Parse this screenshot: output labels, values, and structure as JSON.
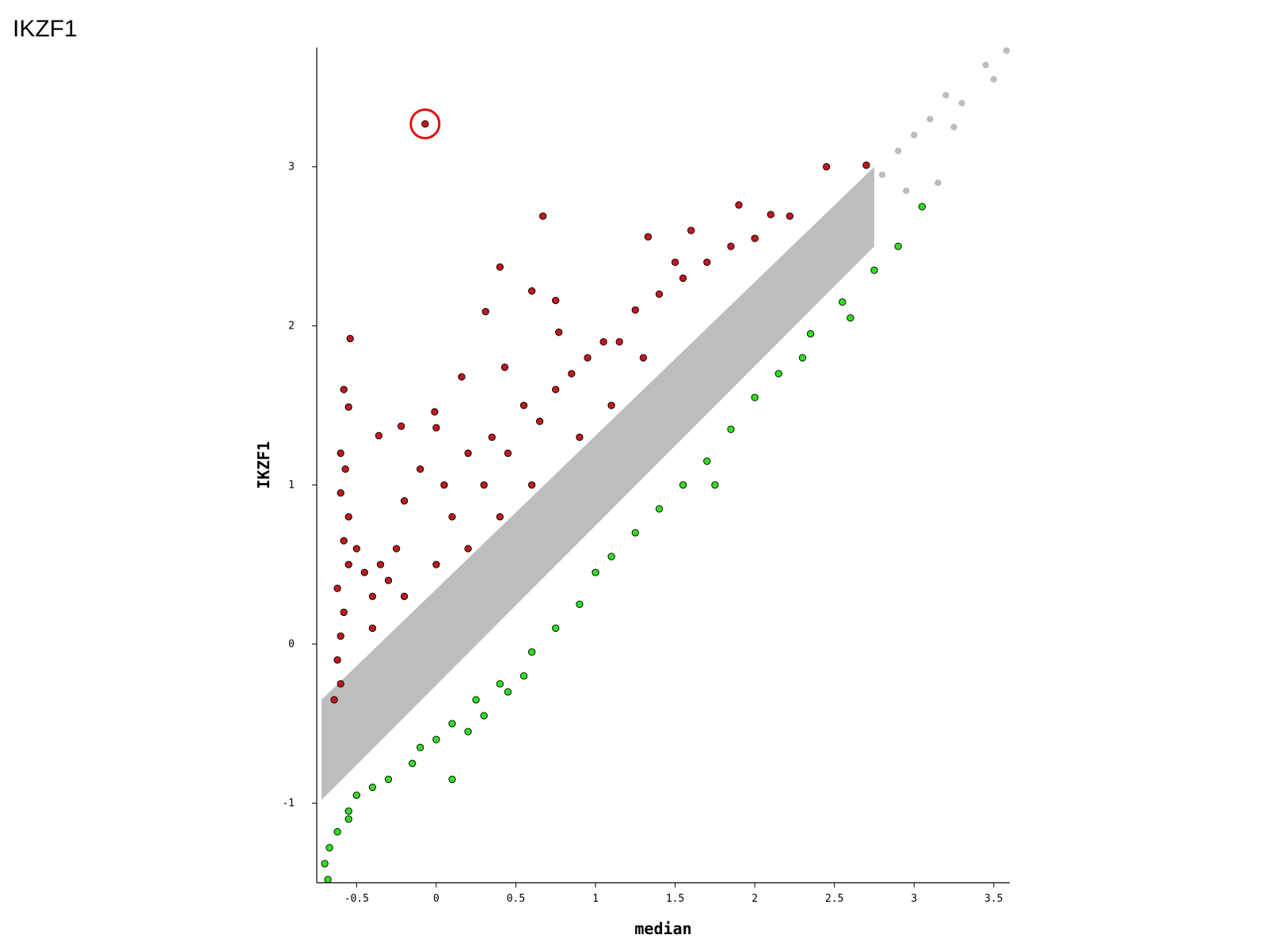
{
  "page_title": "IKZF1",
  "colors": {
    "up": "#c0181e",
    "down": "#33dd22",
    "neutral": "#bdbdbd",
    "highlight": "#e01010",
    "outline": "#000000"
  },
  "chart_data": {
    "type": "scatter",
    "title": "",
    "xlabel": "median",
    "ylabel": "IKZF1",
    "xlim": [
      -0.75,
      3.6
    ],
    "ylim": [
      -1.5,
      3.75
    ],
    "xticks": [
      "-0.5",
      "0",
      "0.5",
      "1",
      "1.5",
      "2",
      "2.5",
      "3",
      "3.5"
    ],
    "yticks": [
      "-1",
      "0",
      "1",
      "2",
      "3"
    ],
    "grid": false,
    "legend": "none",
    "groups": [
      {
        "name": "up",
        "color": "#c0181e",
        "note_values": "representative sample of up-regulated points (above band)",
        "points": [
          [
            -0.07,
            3.27
          ],
          [
            0.67,
            2.69
          ],
          [
            0.4,
            2.37
          ],
          [
            0.6,
            2.22
          ],
          [
            0.75,
            2.16
          ],
          [
            0.31,
            2.09
          ],
          [
            -0.54,
            1.92
          ],
          [
            0.77,
            1.96
          ],
          [
            -0.58,
            1.6
          ],
          [
            -0.55,
            1.49
          ],
          [
            -0.22,
            1.37
          ],
          [
            -0.36,
            1.31
          ],
          [
            0.16,
            1.68
          ],
          [
            0.43,
            1.74
          ],
          [
            -0.01,
            1.46
          ],
          [
            0.0,
            1.36
          ],
          [
            1.33,
            2.56
          ],
          [
            1.9,
            2.76
          ],
          [
            2.45,
            3.0
          ],
          [
            2.7,
            3.01
          ],
          [
            2.22,
            2.69
          ],
          [
            2.1,
            2.7
          ],
          [
            1.6,
            2.6
          ],
          [
            1.5,
            2.4
          ],
          [
            -0.6,
            1.2
          ],
          [
            -0.57,
            1.1
          ],
          [
            -0.6,
            0.95
          ],
          [
            -0.55,
            0.8
          ],
          [
            -0.58,
            0.65
          ],
          [
            -0.55,
            0.5
          ],
          [
            -0.62,
            0.35
          ],
          [
            -0.58,
            0.2
          ],
          [
            -0.6,
            0.05
          ],
          [
            -0.62,
            -0.1
          ],
          [
            -0.6,
            -0.25
          ],
          [
            -0.64,
            -0.35
          ],
          [
            -0.5,
            0.6
          ],
          [
            -0.45,
            0.45
          ],
          [
            -0.4,
            0.3
          ],
          [
            -0.35,
            0.5
          ],
          [
            -0.3,
            0.4
          ],
          [
            -0.25,
            0.6
          ],
          [
            -0.2,
            0.9
          ],
          [
            -0.1,
            1.1
          ],
          [
            0.05,
            1.0
          ],
          [
            0.1,
            0.8
          ],
          [
            0.2,
            1.2
          ],
          [
            0.3,
            1.0
          ],
          [
            0.35,
            1.3
          ],
          [
            0.45,
            1.2
          ],
          [
            0.55,
            1.5
          ],
          [
            0.65,
            1.4
          ],
          [
            0.75,
            1.6
          ],
          [
            0.85,
            1.7
          ],
          [
            0.95,
            1.8
          ],
          [
            1.05,
            1.9
          ],
          [
            1.15,
            1.9
          ],
          [
            1.25,
            2.1
          ],
          [
            1.4,
            2.2
          ],
          [
            1.55,
            2.3
          ],
          [
            1.7,
            2.4
          ],
          [
            1.85,
            2.5
          ],
          [
            2.0,
            2.55
          ],
          [
            0.9,
            1.3
          ],
          [
            1.1,
            1.5
          ],
          [
            1.3,
            1.8
          ],
          [
            0.6,
            1.0
          ],
          [
            0.4,
            0.8
          ],
          [
            0.2,
            0.6
          ],
          [
            0.0,
            0.5
          ],
          [
            -0.2,
            0.3
          ],
          [
            -0.4,
            0.1
          ]
        ]
      },
      {
        "name": "down",
        "color": "#33dd22",
        "note_values": "representative sample of down-regulated points (below band)",
        "points": [
          [
            -0.68,
            -1.48
          ],
          [
            -0.7,
            -1.38
          ],
          [
            -0.67,
            -1.28
          ],
          [
            -0.62,
            -1.18
          ],
          [
            -0.55,
            -1.1
          ],
          [
            -0.5,
            -0.95
          ],
          [
            -0.4,
            -0.9
          ],
          [
            -0.3,
            -0.85
          ],
          [
            -0.15,
            -0.75
          ],
          [
            0.1,
            -0.85
          ],
          [
            0.0,
            -0.6
          ],
          [
            0.1,
            -0.5
          ],
          [
            0.2,
            -0.55
          ],
          [
            0.3,
            -0.45
          ],
          [
            0.45,
            -0.3
          ],
          [
            0.55,
            -0.2
          ],
          [
            0.6,
            -0.05
          ],
          [
            0.75,
            0.1
          ],
          [
            0.9,
            0.25
          ],
          [
            1.0,
            0.45
          ],
          [
            1.1,
            0.55
          ],
          [
            1.25,
            0.7
          ],
          [
            1.4,
            0.85
          ],
          [
            1.55,
            1.0
          ],
          [
            1.7,
            1.15
          ],
          [
            1.85,
            1.35
          ],
          [
            2.0,
            1.55
          ],
          [
            2.15,
            1.7
          ],
          [
            2.35,
            1.95
          ],
          [
            2.55,
            2.15
          ],
          [
            2.75,
            2.35
          ],
          [
            2.9,
            2.5
          ],
          [
            3.05,
            2.75
          ],
          [
            1.75,
            1.0
          ],
          [
            2.3,
            1.8
          ],
          [
            2.6,
            2.05
          ],
          [
            0.4,
            -0.25
          ],
          [
            0.25,
            -0.35
          ],
          [
            -0.1,
            -0.65
          ],
          [
            -0.55,
            -1.05
          ]
        ]
      },
      {
        "name": "neutral",
        "color": "#bdbdbd",
        "note_values": "dense diagonal band of non-significant points (y ≈ x ± 0.3), plus high-end tail",
        "points": [
          [
            3.45,
            3.64
          ],
          [
            3.5,
            3.55
          ],
          [
            3.58,
            3.73
          ],
          [
            3.2,
            3.45
          ],
          [
            3.3,
            3.4
          ],
          [
            3.1,
            3.3
          ],
          [
            3.0,
            3.2
          ],
          [
            2.9,
            3.1
          ],
          [
            3.25,
            3.25
          ],
          [
            3.15,
            2.9
          ],
          [
            2.95,
            2.85
          ],
          [
            2.8,
            2.95
          ]
        ]
      }
    ],
    "annotation": {
      "type": "circle",
      "target_group": "up",
      "x": -0.07,
      "y": 3.27
    }
  }
}
